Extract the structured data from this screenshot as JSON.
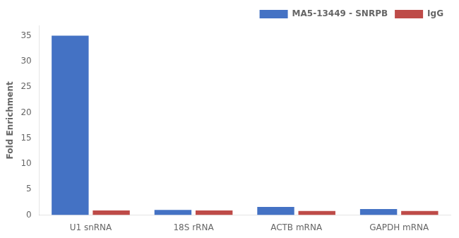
{
  "chart_data": {
    "type": "bar",
    "categories": [
      "U1 snRNA",
      "18S rRNA",
      "ACTB mRNA",
      "GAPDH mRNA"
    ],
    "series": [
      {
        "name": "MA5-13449 - SNRPB",
        "color": "#4472C4",
        "values": [
          35,
          1.0,
          1.6,
          1.2
        ]
      },
      {
        "name": "IgG",
        "color": "#BE4B48",
        "values": [
          0.9,
          0.9,
          0.8,
          0.8
        ]
      }
    ],
    "ylabel": "Fold Enrichment",
    "ylim": [
      0,
      37
    ],
    "yticks": [
      0,
      5,
      10,
      15,
      20,
      25,
      30,
      35
    ],
    "grid": false,
    "legend": "upper right"
  }
}
